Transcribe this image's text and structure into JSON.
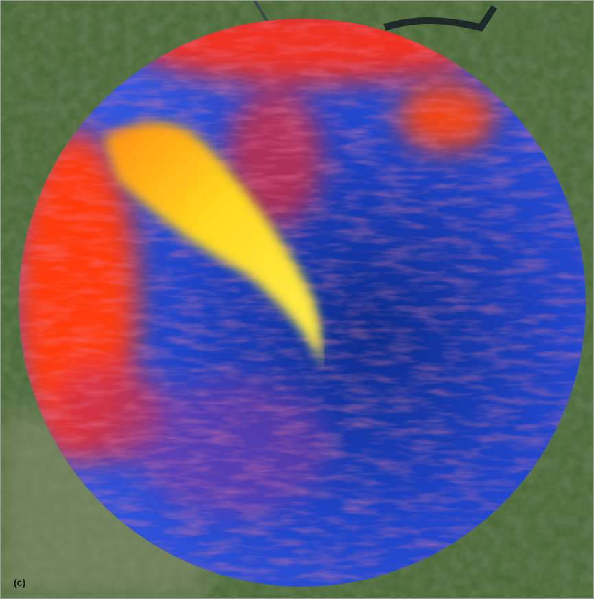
{
  "panel_label": "(c)"
}
